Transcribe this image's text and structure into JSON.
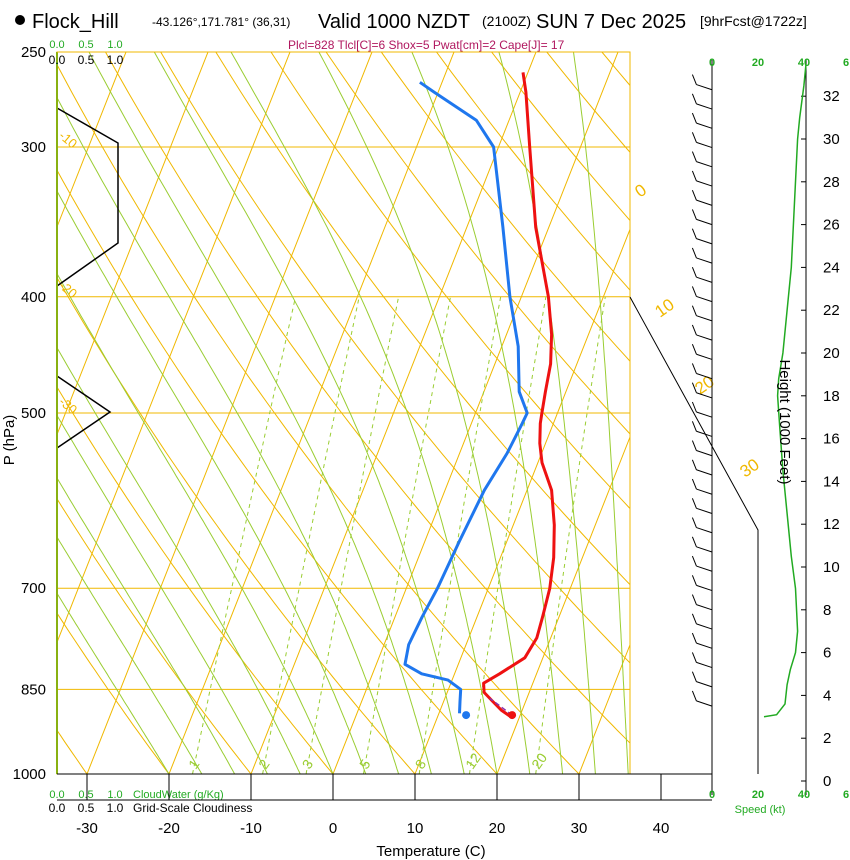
{
  "header": {
    "station": "Flock_Hill",
    "coords": "-43.126°,171.781° (36,31)",
    "valid": "Valid 1000 NZDT",
    "utc": "(2100Z)",
    "date": "SUN 7 Dec 2025",
    "forecast": "[9hrFcst@1722z]",
    "params": "Plcl=828 Tlcl[C]=6 Shox=5 Pwat[cm]=2 Cape[J]= 17"
  },
  "chart_data": {
    "type": "line",
    "title": "Skew-T sounding",
    "xlabel": "Temperature (C)",
    "ylabel": "P (hPa)",
    "height_label": "Height (1000 Feet)",
    "speed_label": "Speed (kt)",
    "xlim": [
      -35,
      45
    ],
    "ylim": [
      1000,
      250
    ],
    "temperature_ticks": [
      -30,
      -20,
      -10,
      0,
      10,
      20,
      30,
      40
    ],
    "pressure_ticks": [
      250,
      300,
      400,
      500,
      700,
      850,
      1000
    ],
    "height_ticks_kft": [
      0,
      2,
      4,
      6,
      8,
      10,
      12,
      14,
      16,
      18,
      20,
      22,
      24,
      26,
      28,
      30,
      32
    ],
    "speed_ticks": [
      0,
      20,
      40
    ],
    "speed_top_ticks": [
      "0",
      "20",
      "40",
      "6"
    ],
    "cloud_axis_ticks": [
      "0.0",
      "0.5",
      "1.0"
    ],
    "cloud_water_label": "CloudWater (g/Kg)",
    "cloudiness_label": "Grid-Scale Cloudiness",
    "mixing_ratio_labels": [
      "1",
      "2",
      "3",
      "5",
      "8",
      "12",
      "20"
    ],
    "dry_adiabat_labels": [
      "10",
      "0",
      "-10",
      "-20",
      "-30"
    ],
    "moist_adiabat_labels": [
      "0",
      "10",
      "20",
      "30"
    ],
    "series": [
      {
        "name": "Temperature",
        "color": "#ee1111",
        "points": [
          [
            18.8,
            895
          ],
          [
            17.5,
            885
          ],
          [
            16.0,
            870
          ],
          [
            14.5,
            855
          ],
          [
            14.0,
            840
          ],
          [
            15.5,
            825
          ],
          [
            17.8,
            800
          ],
          [
            18.3,
            770
          ],
          [
            18.0,
            740
          ],
          [
            17.5,
            700
          ],
          [
            16.5,
            660
          ],
          [
            15.0,
            620
          ],
          [
            13.0,
            580
          ],
          [
            10.5,
            550
          ],
          [
            9.3,
            530
          ],
          [
            8.4,
            510
          ],
          [
            8.1,
            500
          ],
          [
            7.5,
            480
          ],
          [
            6.8,
            455
          ],
          [
            5.5,
            430
          ],
          [
            3.3,
            400
          ],
          [
            -1.6,
            350
          ],
          [
            -6.2,
            300
          ],
          [
            -9.3,
            270
          ],
          [
            -10.6,
            260
          ]
        ]
      },
      {
        "name": "Dewpoint",
        "color": "#1f77ee",
        "points": [
          [
            12.5,
            890
          ],
          [
            12.0,
            870
          ],
          [
            11.5,
            850
          ],
          [
            9.5,
            835
          ],
          [
            6.0,
            825
          ],
          [
            3.5,
            810
          ],
          [
            3.0,
            780
          ],
          [
            3.3,
            740
          ],
          [
            3.8,
            700
          ],
          [
            4.2,
            640
          ],
          [
            4.8,
            580
          ],
          [
            5.8,
            540
          ],
          [
            6.2,
            510
          ],
          [
            6.3,
            500
          ],
          [
            4.3,
            480
          ],
          [
            2.0,
            440
          ],
          [
            -1.4,
            400
          ],
          [
            -5.6,
            350
          ],
          [
            -10.6,
            300
          ],
          [
            -14.0,
            285
          ],
          [
            -20.5,
            270
          ],
          [
            -22.7,
            265
          ]
        ]
      }
    ],
    "parcel_markers": [
      {
        "name": "surface-temperature",
        "t": 19.0,
        "p": 893
      },
      {
        "name": "surface-dewpoint",
        "t": 13.4,
        "p": 893
      }
    ],
    "wind_profile": {
      "barb_range_kft": [
        3,
        33
      ],
      "speed_max_kt": 40
    }
  }
}
